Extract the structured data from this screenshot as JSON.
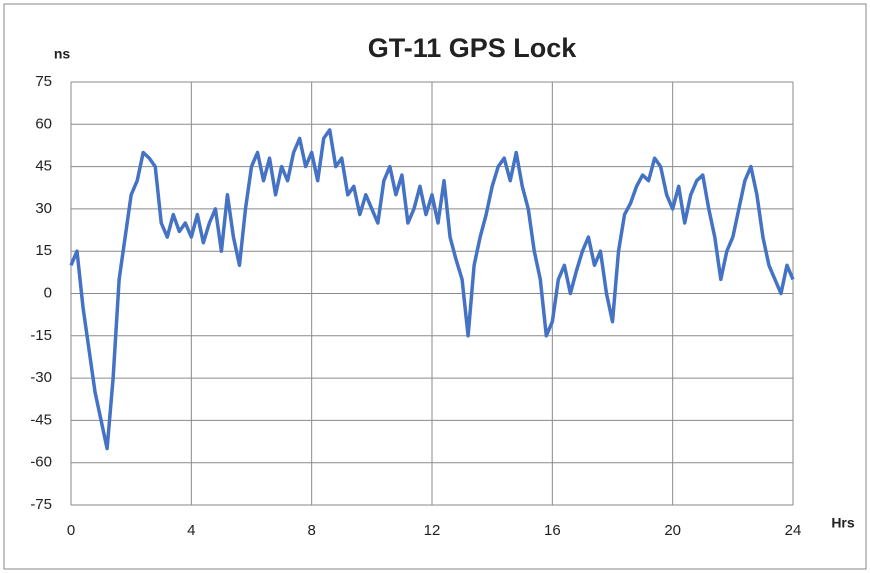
{
  "chart_data": {
    "type": "line",
    "title": "GT-11 GPS Lock",
    "y_label": "ns",
    "x_label": "Hrs",
    "x": [
      0,
      0.2,
      0.4,
      0.6,
      0.8,
      1.0,
      1.2,
      1.4,
      1.6,
      1.8,
      2.0,
      2.2,
      2.4,
      2.6,
      2.8,
      3.0,
      3.2,
      3.4,
      3.6,
      3.8,
      4.0,
      4.2,
      4.4,
      4.6,
      4.8,
      5.0,
      5.2,
      5.4,
      5.6,
      5.8,
      6.0,
      6.2,
      6.4,
      6.6,
      6.8,
      7.0,
      7.2,
      7.4,
      7.6,
      7.8,
      8.0,
      8.2,
      8.4,
      8.6,
      8.8,
      9.0,
      9.2,
      9.4,
      9.6,
      9.8,
      10.0,
      10.2,
      10.4,
      10.6,
      10.8,
      11.0,
      11.2,
      11.4,
      11.6,
      11.8,
      12.0,
      12.2,
      12.4,
      12.6,
      12.8,
      13.0,
      13.2,
      13.4,
      13.6,
      13.8,
      14.0,
      14.2,
      14.4,
      14.6,
      14.8,
      15.0,
      15.2,
      15.4,
      15.6,
      15.8,
      16.0,
      16.2,
      16.4,
      16.6,
      16.8,
      17.0,
      17.2,
      17.4,
      17.6,
      17.8,
      18.0,
      18.2,
      18.4,
      18.6,
      18.8,
      19.0,
      19.2,
      19.4,
      19.6,
      19.8,
      20.0,
      20.2,
      20.4,
      20.6,
      20.8,
      21.0,
      21.2,
      21.4,
      21.6,
      21.8,
      22.0,
      22.2,
      22.4,
      22.6,
      22.8,
      23.0,
      23.2,
      23.4,
      23.6,
      23.8,
      24.0
    ],
    "series": [
      {
        "name": "GT-11",
        "color": "#4472c4",
        "values": [
          10,
          15,
          -5,
          -20,
          -35,
          -45,
          -55,
          -30,
          5,
          20,
          35,
          40,
          50,
          48,
          45,
          25,
          20,
          28,
          22,
          25,
          20,
          28,
          18,
          25,
          30,
          15,
          35,
          20,
          10,
          30,
          45,
          50,
          40,
          48,
          35,
          45,
          40,
          50,
          55,
          45,
          50,
          40,
          55,
          58,
          45,
          48,
          35,
          38,
          28,
          35,
          30,
          25,
          40,
          45,
          35,
          42,
          25,
          30,
          38,
          28,
          35,
          25,
          40,
          20,
          12,
          5,
          -15,
          10,
          20,
          28,
          38,
          45,
          48,
          40,
          50,
          38,
          30,
          15,
          5,
          -15,
          -10,
          5,
          10,
          0,
          8,
          15,
          20,
          10,
          15,
          0,
          -10,
          15,
          28,
          32,
          38,
          42,
          40,
          48,
          45,
          35,
          30,
          38,
          25,
          35,
          40,
          42,
          30,
          20,
          5,
          15,
          20,
          30,
          40,
          45,
          35,
          20,
          10,
          5,
          0,
          10,
          5
        ]
      }
    ],
    "xlim": [
      0,
      24
    ],
    "xticks": [
      0,
      4,
      8,
      12,
      16,
      20,
      24
    ],
    "ylim": [
      -75,
      75
    ],
    "yticks": [
      -75,
      -60,
      -45,
      -30,
      -15,
      0,
      15,
      30,
      45,
      60,
      75
    ],
    "grid": true
  }
}
